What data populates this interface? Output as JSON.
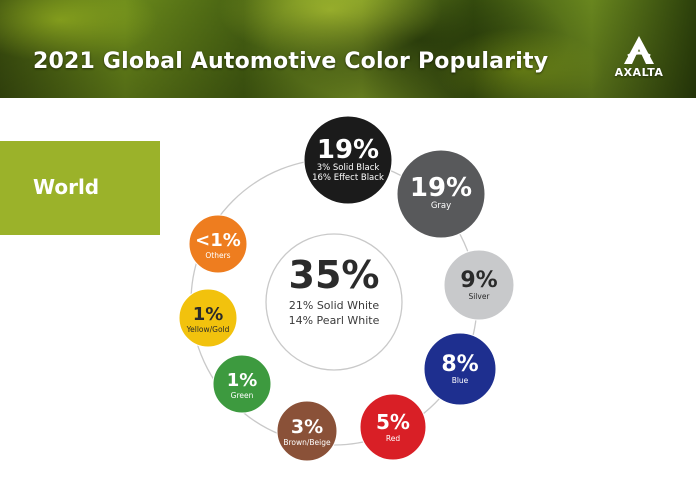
{
  "header": {
    "title": "2021 Global Automotive Color Popularity",
    "logo_text": "AXALTA"
  },
  "region": {
    "label": "World"
  },
  "chart_data": {
    "type": "bubble-ring",
    "title": "2021 Global Automotive Color Popularity",
    "region": "World",
    "center": {
      "value_label": "35%",
      "value": 35,
      "name": "White",
      "details": [
        "21% Solid White",
        "14% Pearl White"
      ]
    },
    "items": [
      {
        "value_label": "19%",
        "value": 19,
        "name": "Black",
        "details": [
          "3% Solid Black",
          "16% Effect Black"
        ],
        "fill": "#1b1b1b",
        "text_color": "#ffffff"
      },
      {
        "value_label": "19%",
        "value": 19,
        "name": "Gray",
        "details": [
          "Gray"
        ],
        "fill": "#58595b",
        "text_color": "#ffffff"
      },
      {
        "value_label": "9%",
        "value": 9,
        "name": "Silver",
        "details": [
          "Silver"
        ],
        "fill": "#c8c9cb",
        "text_color": "#2a2a2a"
      },
      {
        "value_label": "8%",
        "value": 8,
        "name": "Blue",
        "details": [
          "Blue"
        ],
        "fill": "#1e2f8f",
        "text_color": "#ffffff"
      },
      {
        "value_label": "5%",
        "value": 5,
        "name": "Red",
        "details": [
          "Red"
        ],
        "fill": "#d91f26",
        "text_color": "#ffffff"
      },
      {
        "value_label": "3%",
        "value": 3,
        "name": "Brown/Beige",
        "details": [
          "Brown/Beige"
        ],
        "fill": "#8a5138",
        "text_color": "#ffffff"
      },
      {
        "value_label": "1%",
        "value": 1,
        "name": "Green",
        "details": [
          "Green"
        ],
        "fill": "#3d9a3f",
        "text_color": "#ffffff"
      },
      {
        "value_label": "1%",
        "value": 1,
        "name": "Yellow/Gold",
        "details": [
          "Yellow/Gold"
        ],
        "fill": "#f2c20d",
        "text_color": "#2a2a2a"
      },
      {
        "value_label": "<1%",
        "value": 0.5,
        "name": "Others",
        "details": [
          "Others"
        ],
        "fill": "#ee7d1f",
        "text_color": "#ffffff"
      }
    ]
  }
}
